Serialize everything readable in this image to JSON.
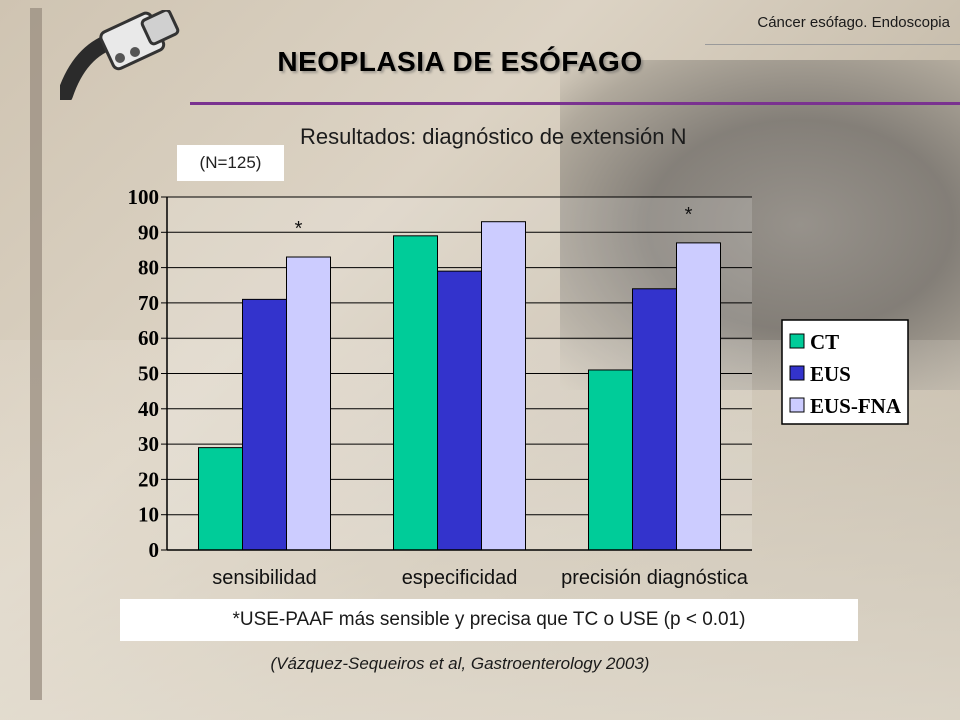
{
  "header": {
    "top_right": "Cáncer esófago. Endoscopia",
    "title": "NEOPLASIA DE ESÓFAGO"
  },
  "subtitle": "Resultados: diagnóstico de extensión N",
  "sample_size": "(N=125)",
  "note": "*USE-PAAF más sensible y precisa que TC o USE (p < 0.01)",
  "citation": "(Vázquez-Sequeiros et al, Gastroenterology 2003)",
  "colors": {
    "CT": "#00cc99",
    "EUS": "#3333cc",
    "EUS-FNA": "#ccccff",
    "accent": "#7a3290"
  },
  "chart_data": {
    "type": "bar",
    "categories": [
      "sensibilidad",
      "especificidad",
      "precisión diagnóstica"
    ],
    "series": [
      {
        "name": "CT",
        "values": [
          29,
          89,
          51
        ]
      },
      {
        "name": "EUS",
        "values": [
          71,
          79,
          74
        ]
      },
      {
        "name": "EUS-FNA",
        "values": [
          83,
          93,
          87
        ]
      }
    ],
    "ylim": [
      0,
      100
    ],
    "yticks": [
      0,
      10,
      20,
      30,
      40,
      50,
      60,
      70,
      80,
      90,
      100
    ],
    "grid": true,
    "legend_position": "right",
    "annotations": [
      {
        "text": "*",
        "category": 0
      },
      {
        "text": "*",
        "category": 2
      }
    ]
  }
}
